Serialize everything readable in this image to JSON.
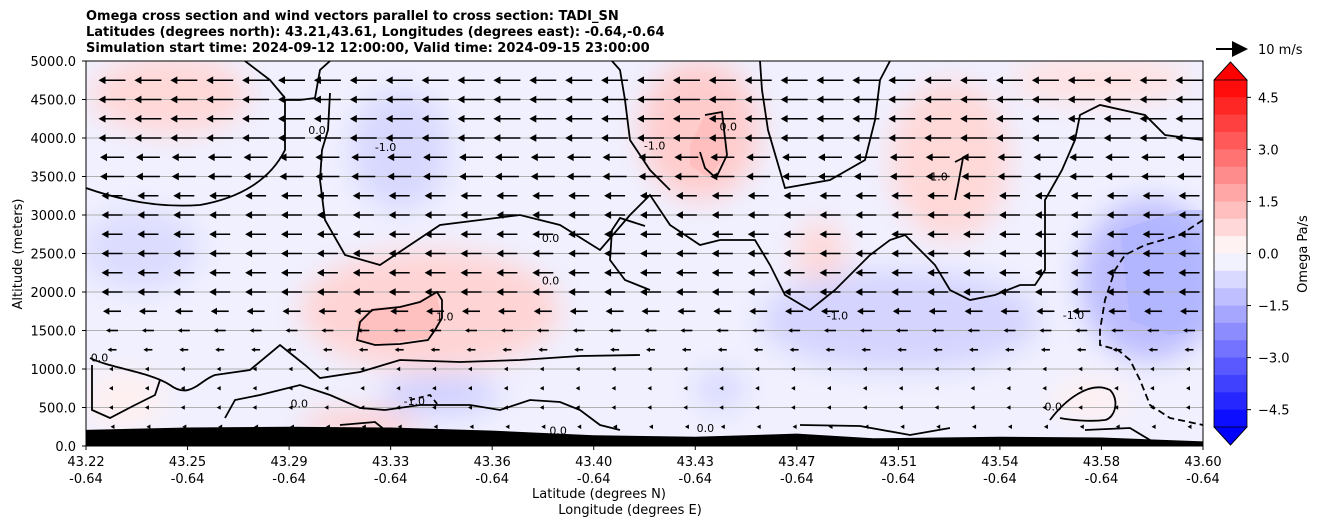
{
  "chart_data": {
    "type": "contour",
    "title_lines": [
      "Omega cross section and wind vectors parallel to cross section: TADI_SN",
      "Latitudes (degrees north): 43.21,43.61, Longitudes (degrees east): -0.64,-0.64",
      "Simulation start time: 2024-09-12 12:00:00, Valid time: 2024-09-15 23:00:00"
    ],
    "ylabel": "Altitude (meters)",
    "xlabel_lat": "Latitude (degrees N)",
    "xlabel_lon": "Longitude (degrees E)",
    "ylim": [
      0,
      5000
    ],
    "y_ticks": [
      "0.0",
      "500.0",
      "1000.0",
      "1500.0",
      "2000.0",
      "2500.0",
      "3000.0",
      "3500.0",
      "4000.0",
      "4500.0",
      "5000.0"
    ],
    "x_tick_lat": [
      "43.22",
      "43.25",
      "43.29",
      "43.33",
      "43.36",
      "43.40",
      "43.43",
      "43.47",
      "43.51",
      "43.54",
      "43.58",
      "43.60"
    ],
    "x_tick_lon": [
      "-0.64",
      "-0.64",
      "-0.64",
      "-0.64",
      "-0.64",
      "-0.64",
      "-0.64",
      "-0.64",
      "-0.64",
      "-0.64",
      "-0.64",
      "-0.64"
    ],
    "grid_horizontal": true,
    "colorbar": {
      "label": "Omega Pa/s",
      "range": [
        -5.0,
        5.0
      ],
      "step": 0.5,
      "ticks": [
        "4.5",
        "3.0",
        "1.5",
        "0.0",
        "−1.5",
        "−3.0",
        "−4.5"
      ],
      "extend": "both",
      "colormap": "bwr",
      "colors": {
        "negative_end": "#0000ff",
        "positive_end": "#ff0000",
        "center": "#ffffff"
      }
    },
    "contour_levels": [
      -1.0,
      0.0,
      1.0
    ],
    "contour_labels": [
      {
        "text": "0.0",
        "x": 43.224,
        "y": 1100
      },
      {
        "text": "0.0",
        "x": 43.294,
        "y": 500
      },
      {
        "text": "0.0",
        "x": 43.301,
        "y": 4050
      },
      {
        "text": "-1.0",
        "x": 43.328,
        "y": 3830
      },
      {
        "text": "1.0",
        "x": 43.346,
        "y": 1630
      },
      {
        "text": "-1.0",
        "x": 43.337,
        "y": 530
      },
      {
        "text": "-1.0",
        "x": 43.418,
        "y": 3850
      },
      {
        "text": "0.0",
        "x": 43.383,
        "y": 2650
      },
      {
        "text": "0.0",
        "x": 43.383,
        "y": 2100
      },
      {
        "text": "0.0",
        "x": 43.386,
        "y": 150
      },
      {
        "text": "0.0",
        "x": 43.443,
        "y": 4100
      },
      {
        "text": "0.0",
        "x": 43.434,
        "y": 180
      },
      {
        "text": "-1.0",
        "x": 43.486,
        "y": 1640
      },
      {
        "text": "1.0",
        "x": 43.522,
        "y": 3450
      },
      {
        "text": "-1.0",
        "x": 43.569,
        "y": 1650
      },
      {
        "text": "0.0",
        "x": 43.561,
        "y": 460
      }
    ],
    "wind_vectors": {
      "reference": {
        "speed": 10,
        "unit": "m/s",
        "label": "10 m/s"
      },
      "levels_m": [
        4750,
        4500,
        4250,
        4000,
        3750,
        3500,
        3250,
        3000,
        2750,
        2500,
        2250,
        2000,
        1750,
        1500,
        1250,
        1000,
        750,
        500,
        250
      ],
      "v_speed_ms": [
        9,
        9,
        9,
        9,
        8,
        8,
        7,
        7,
        7,
        7,
        7,
        7,
        6,
        4,
        3,
        2,
        2,
        2,
        1
      ],
      "direction": "southward (toward lower latitude)"
    },
    "terrain": {
      "x": [
        43.22,
        43.25,
        43.29,
        43.33,
        43.36,
        43.4,
        43.43,
        43.45,
        43.47,
        43.5,
        43.54,
        43.58,
        43.6
      ],
      "height_m": [
        210,
        240,
        250,
        240,
        200,
        140,
        120,
        140,
        160,
        100,
        120,
        110,
        60
      ]
    }
  }
}
